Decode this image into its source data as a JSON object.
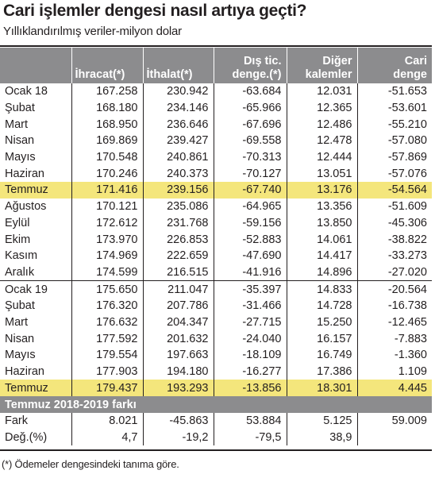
{
  "title": "Cari işlemler dengesi nasıl artıya geçti?",
  "subtitle": "Yıllıklandırılmış veriler-milyon dolar",
  "headers": {
    "c0": "",
    "c1": "İhracat(*)",
    "c2": "İthalat(*)",
    "c3a": "Dış tic.",
    "c3b": "denge.(*)",
    "c4a": "Diğer",
    "c4b": "kalemler",
    "c5a": "Cari",
    "c5b": "denge"
  },
  "rows": [
    {
      "label": "Ocak 18",
      "ihracat": "167.258",
      "ithalat": "230.942",
      "dis": "-63.684",
      "diger": "12.031",
      "cari": "-51.653"
    },
    {
      "label": "Şubat",
      "ihracat": "168.180",
      "ithalat": "234.146",
      "dis": "-65.966",
      "diger": "12.365",
      "cari": "-53.601"
    },
    {
      "label": "Mart",
      "ihracat": "168.950",
      "ithalat": "236.646",
      "dis": "-67.696",
      "diger": "12.486",
      "cari": "-55.210"
    },
    {
      "label": "Nisan",
      "ihracat": "169.869",
      "ithalat": "239.427",
      "dis": "-69.558",
      "diger": "12.478",
      "cari": "-57.080"
    },
    {
      "label": "Mayıs",
      "ihracat": "170.548",
      "ithalat": "240.861",
      "dis": "-70.313",
      "diger": "12.444",
      "cari": "-57.869"
    },
    {
      "label": "Haziran",
      "ihracat": "170.246",
      "ithalat": "240.373",
      "dis": "-70.127",
      "diger": "13.051",
      "cari": "-57.076"
    },
    {
      "label": "Temmuz",
      "ihracat": "171.416",
      "ithalat": "239.156",
      "dis": "-67.740",
      "diger": "13.176",
      "cari": "-54.564"
    },
    {
      "label": "Ağustos",
      "ihracat": "170.121",
      "ithalat": "235.086",
      "dis": "-64.965",
      "diger": "13.356",
      "cari": "-51.609"
    },
    {
      "label": "Eylül",
      "ihracat": "172.612",
      "ithalat": "231.768",
      "dis": "-59.156",
      "diger": "13.850",
      "cari": "-45.306"
    },
    {
      "label": "Ekim",
      "ihracat": "173.970",
      "ithalat": "226.853",
      "dis": "-52.883",
      "diger": "14.061",
      "cari": "-38.822"
    },
    {
      "label": "Kasım",
      "ihracat": "174.969",
      "ithalat": "222.659",
      "dis": "-47.690",
      "diger": "14.417",
      "cari": "-33.273"
    },
    {
      "label": "Aralık",
      "ihracat": "174.599",
      "ithalat": "216.515",
      "dis": "-41.916",
      "diger": "14.896",
      "cari": "-27.020"
    },
    {
      "label": "Ocak 19",
      "ihracat": "175.650",
      "ithalat": "211.047",
      "dis": "-35.397",
      "diger": "14.833",
      "cari": "-20.564"
    },
    {
      "label": "Şubat",
      "ihracat": "176.320",
      "ithalat": "207.786",
      "dis": "-31.466",
      "diger": "14.728",
      "cari": "-16.738"
    },
    {
      "label": "Mart",
      "ihracat": "176.632",
      "ithalat": "204.347",
      "dis": "-27.715",
      "diger": "15.250",
      "cari": "-12.465"
    },
    {
      "label": "Nisan",
      "ihracat": "177.592",
      "ithalat": "201.632",
      "dis": "-24.040",
      "diger": "16.157",
      "cari": "-7.883"
    },
    {
      "label": "Mayıs",
      "ihracat": "179.554",
      "ithalat": "197.663",
      "dis": "-18.109",
      "diger": "16.749",
      "cari": "-1.360"
    },
    {
      "label": "Haziran",
      "ihracat": "177.903",
      "ithalat": "194.180",
      "dis": "-16.277",
      "diger": "17.386",
      "cari": "1.109"
    },
    {
      "label": "Temmuz",
      "ihracat": "179.437",
      "ithalat": "193.293",
      "dis": "-13.856",
      "diger": "18.301",
      "cari": "4.445"
    }
  ],
  "section_title": "Temmuz 2018-2019 farkı",
  "fark": {
    "label": "Fark",
    "ihracat": "8.021",
    "ithalat": "-45.863",
    "dis": "53.884",
    "diger": "5.125",
    "cari": "59.009"
  },
  "degisim": {
    "label": "Değ.(%)",
    "ihracat": "4,7",
    "ithalat": "-19,2",
    "dis": "-79,5",
    "diger": "38,9",
    "cari": ""
  },
  "footnote": "(*) Ödemeler dengesindeki tanıma göre.",
  "colors": {
    "header_gray": "#8c8c8e",
    "highlight_yellow": "#f4e67c",
    "text": "#231f20"
  }
}
